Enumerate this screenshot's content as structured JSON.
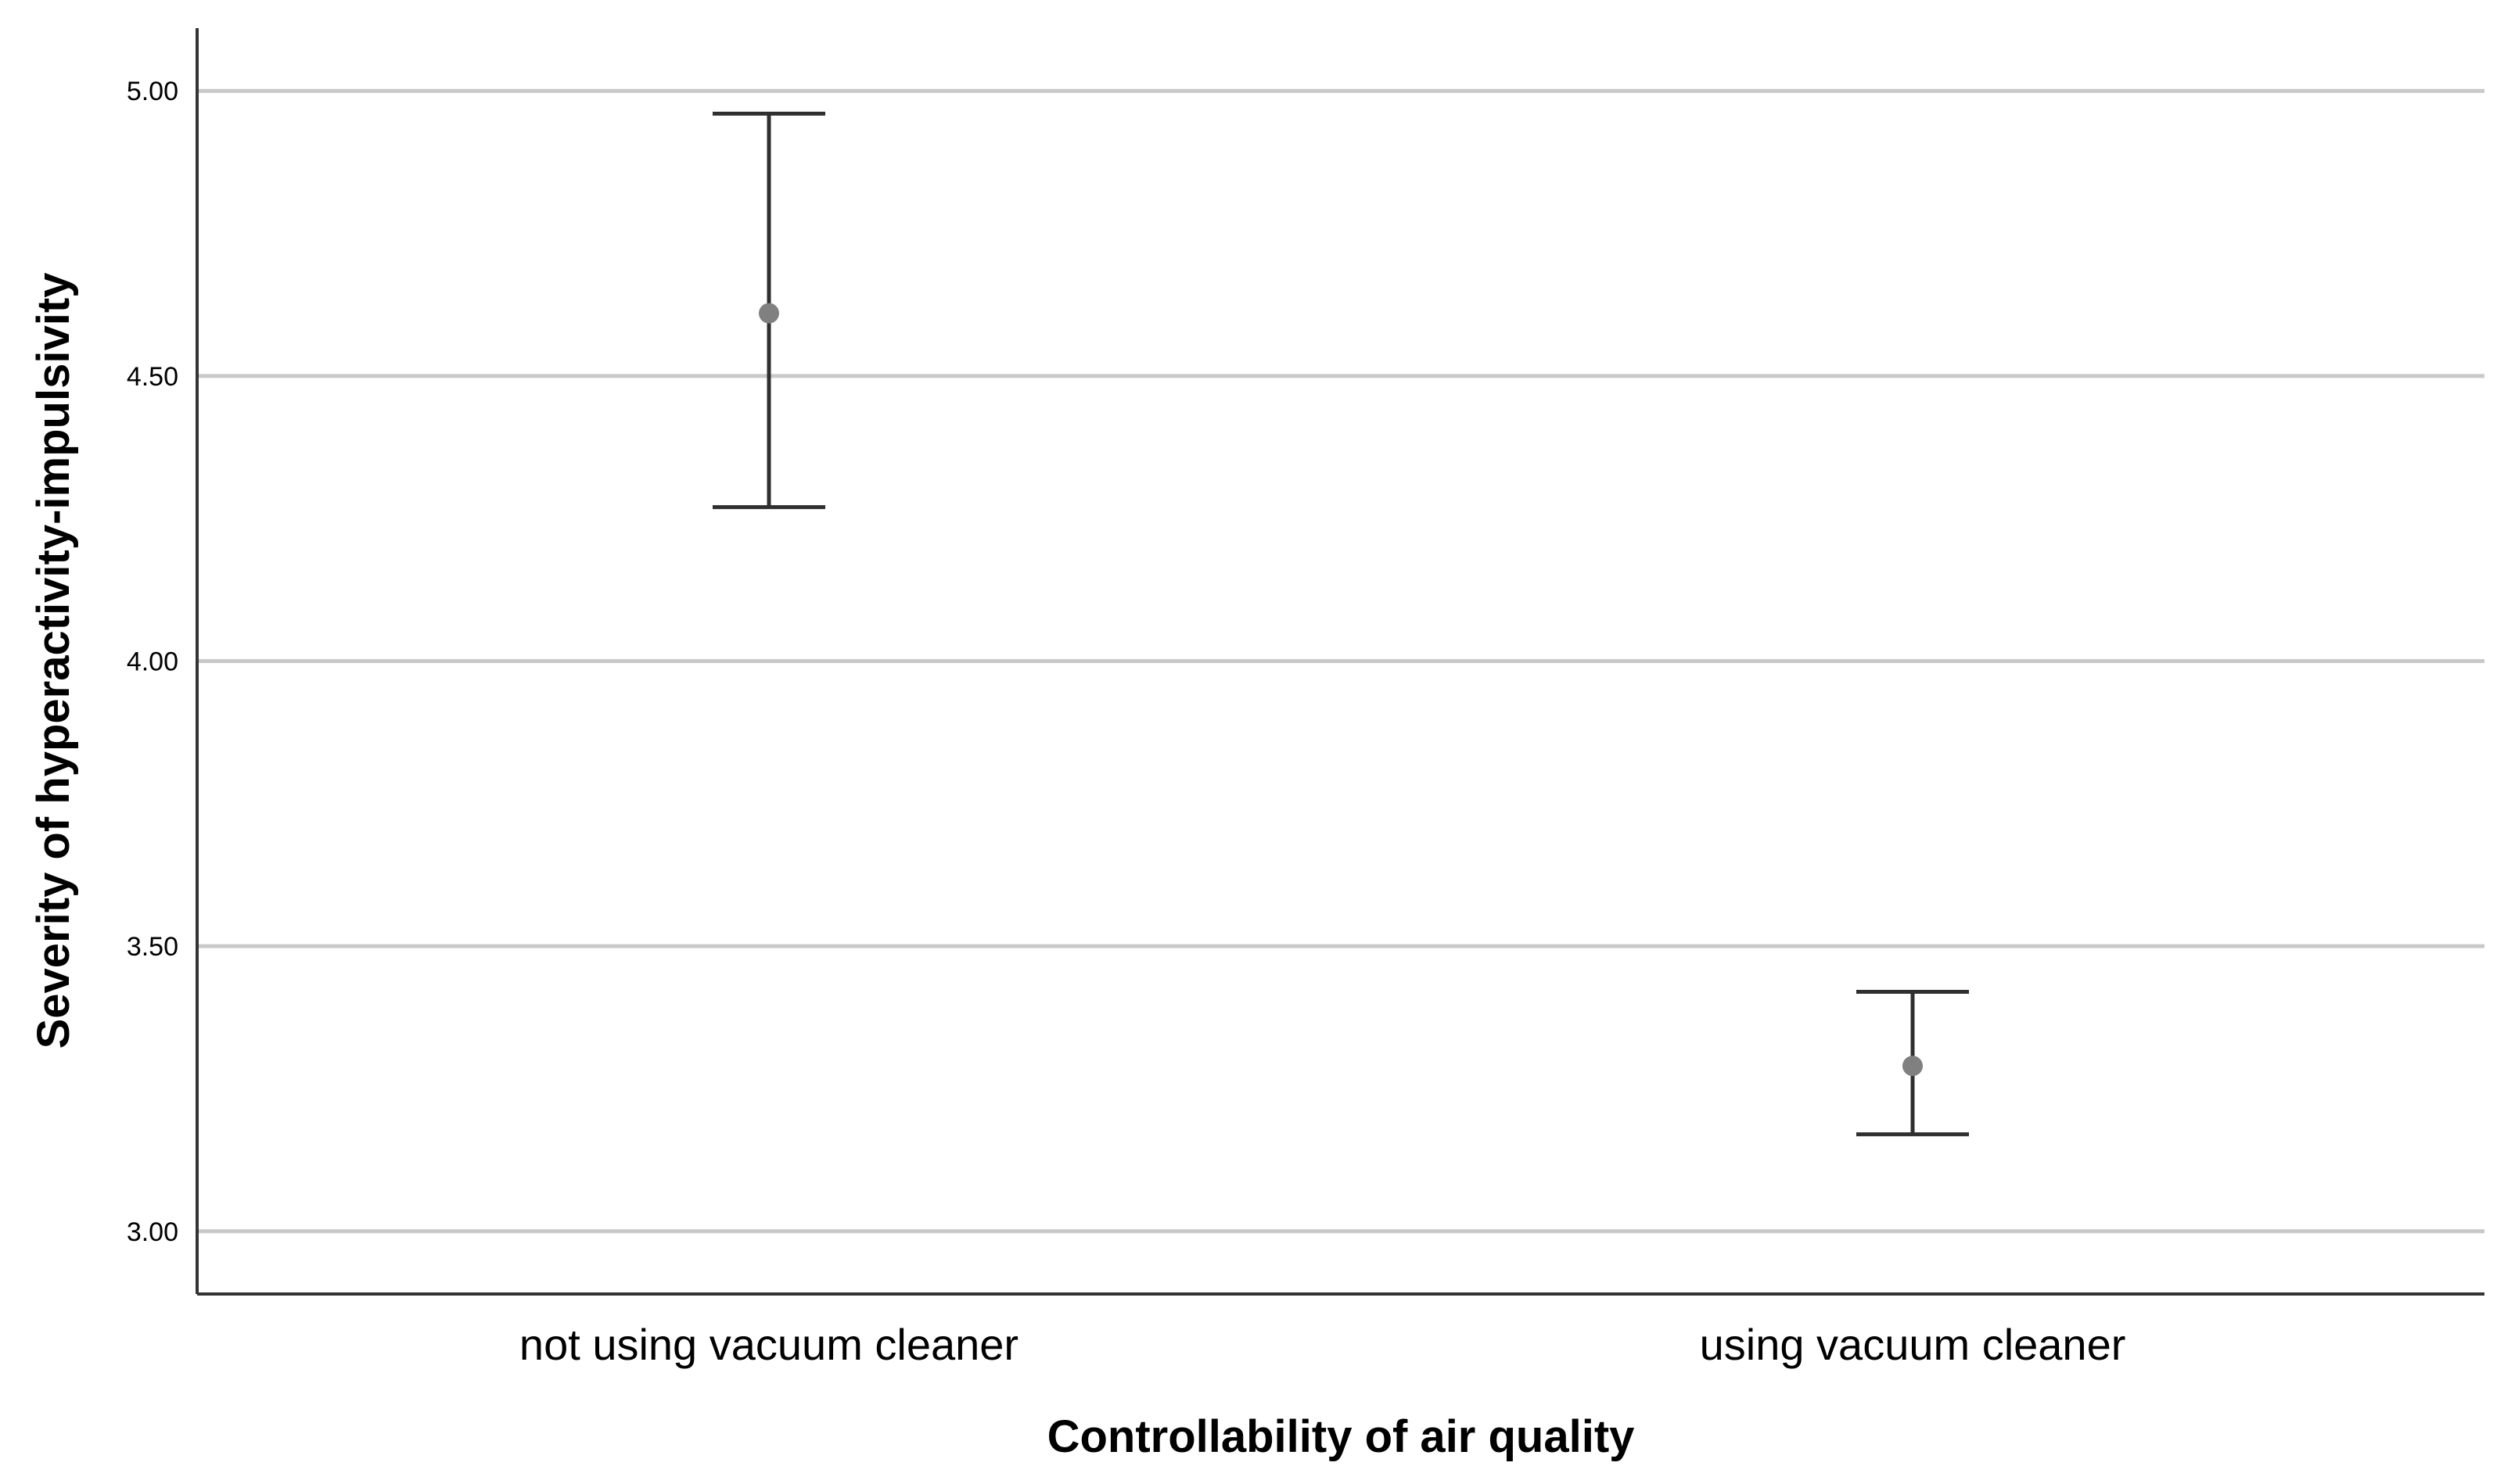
{
  "chart_data": {
    "type": "scatter",
    "title": "",
    "xlabel": "Controllability of air quality",
    "ylabel": "Severity of hyperactivity-impulsivity",
    "ylim": [
      2.89,
      5.11
    ],
    "yticks": [
      "3.00",
      "3.50",
      "4.00",
      "4.50",
      "5.00"
    ],
    "categories": [
      "not using vacuum cleaner",
      "using vacuum cleaner"
    ],
    "series": [
      {
        "means": [
          4.61,
          3.29
        ],
        "upper": [
          4.96,
          3.42
        ],
        "lower": [
          4.27,
          3.17
        ]
      }
    ],
    "grid": true,
    "colors": {
      "point": "#808080",
      "error_bar": "#2f2f2f",
      "grid": "#c9c9c9",
      "axis": "#333333"
    }
  }
}
